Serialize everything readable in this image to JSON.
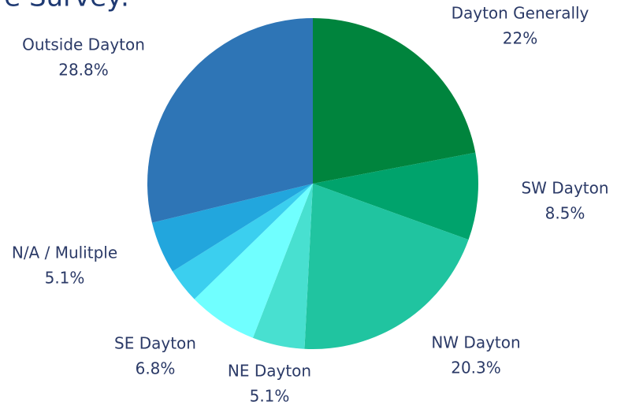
{
  "chart_data": {
    "type": "pie",
    "title": "re Survey:",
    "categories": [
      "Dayton Generally",
      "SW Dayton",
      "NW Dayton",
      "NE Dayton",
      "SE Dayton",
      null,
      "N/A / Mulitple",
      "Outside Dayton"
    ],
    "values": [
      22,
      8.5,
      20.3,
      5.1,
      6.8,
      3.4,
      5.1,
      28.8
    ],
    "value_labels": [
      "22%",
      "8.5%",
      "20.3%",
      "5.1%",
      "6.8%",
      null,
      "5.1%",
      "28.8%"
    ],
    "colors": [
      "#00843d",
      "#00a36c",
      "#20c4a0",
      "#48e0d0",
      "#70ffff",
      "#3bcfef",
      "#22a6dd",
      "#2e75b6"
    ]
  }
}
